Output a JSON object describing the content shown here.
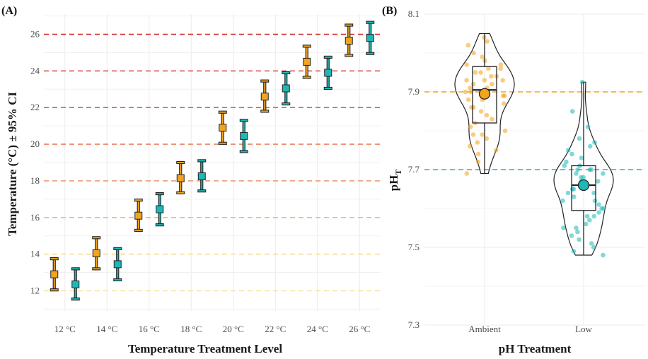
{
  "chart_data": [
    {
      "panel": "(A)",
      "type": "scatter",
      "xlabel": "Temperature Treatment Level",
      "ylabel": "Temperature (°C) ± 95% CI",
      "categories": [
        "12 °C",
        "14 °C",
        "16 °C",
        "18 °C",
        "20 °C",
        "22 °C",
        "24 °C",
        "26 °C"
      ],
      "target_values": [
        12,
        14,
        16,
        18,
        20,
        22,
        24,
        26
      ],
      "target_colors": [
        "#f6e7a1",
        "#f5d98e",
        "#f2b880",
        "#ee9a78",
        "#e98060",
        "#df5f4c",
        "#d84a3e",
        "#cf2f2f"
      ],
      "yticks": [
        12,
        14,
        16,
        18,
        20,
        22,
        24,
        26
      ],
      "ylim": [
        10.9,
        27.1
      ],
      "grid": true,
      "series": [
        {
          "color": "#f2a41c",
          "mean": [
            12.9,
            14.05,
            16.1,
            18.15,
            20.9,
            22.6,
            24.5,
            25.65
          ],
          "lower": [
            12.05,
            13.2,
            15.3,
            17.35,
            20.05,
            21.8,
            23.65,
            24.85
          ],
          "upper": [
            13.75,
            14.9,
            16.95,
            19.0,
            21.75,
            23.45,
            25.35,
            26.5
          ]
        },
        {
          "color": "#1fb7b7",
          "mean": [
            12.35,
            13.45,
            16.45,
            18.25,
            20.45,
            23.05,
            23.9,
            25.8
          ],
          "lower": [
            11.55,
            12.6,
            15.6,
            17.45,
            19.6,
            22.2,
            23.05,
            24.95
          ],
          "upper": [
            13.2,
            14.3,
            17.3,
            19.1,
            21.3,
            23.9,
            24.75,
            26.65
          ]
        }
      ]
    },
    {
      "panel": "(B)",
      "type": "violin",
      "xlabel": "pH Treatment",
      "ylabel_main": "pH",
      "ylabel_sub": "T",
      "categories": [
        "Ambient",
        "Low"
      ],
      "targets": [
        7.9,
        7.7
      ],
      "target_colors": [
        "#f2a41c",
        "#1fb7b7"
      ],
      "yticks": [
        "7.3",
        "7.5",
        "7.7",
        "7.9",
        "8.1"
      ],
      "ylim": [
        7.3,
        8.1
      ],
      "grid": true,
      "groups": [
        {
          "name": "Ambient",
          "color": "#f2a41c",
          "mean": 7.895,
          "box": {
            "q1": 7.82,
            "median": 7.905,
            "q3": 7.965
          },
          "whisker": [
            7.69,
            8.05
          ],
          "points": [
            8.04,
            8.03,
            8.02,
            8.0,
            7.99,
            7.98,
            7.97,
            7.96,
            7.96,
            7.95,
            7.95,
            7.94,
            7.94,
            7.93,
            7.93,
            7.92,
            7.92,
            7.91,
            7.91,
            7.9,
            7.9,
            7.9,
            7.89,
            7.89,
            7.88,
            7.88,
            7.87,
            7.86,
            7.85,
            7.84,
            7.83,
            7.82,
            7.81,
            7.8,
            7.79,
            7.79,
            7.78,
            7.77,
            7.76,
            7.75,
            7.74,
            7.72,
            7.69,
            7.93,
            7.86,
            7.97
          ]
        },
        {
          "name": "Low",
          "color": "#1fb7b7",
          "mean": 7.66,
          "box": {
            "q1": 7.595,
            "median": 7.66,
            "q3": 7.71
          },
          "whisker": [
            7.48,
            7.925
          ],
          "points": [
            7.925,
            7.85,
            7.81,
            7.78,
            7.77,
            7.76,
            7.75,
            7.74,
            7.73,
            7.72,
            7.71,
            7.71,
            7.7,
            7.7,
            7.69,
            7.69,
            7.68,
            7.68,
            7.67,
            7.67,
            7.66,
            7.66,
            7.65,
            7.65,
            7.64,
            7.64,
            7.63,
            7.62,
            7.61,
            7.6,
            7.6,
            7.59,
            7.58,
            7.57,
            7.56,
            7.55,
            7.55,
            7.54,
            7.53,
            7.52,
            7.51,
            7.5,
            7.49,
            7.48,
            7.62,
            7.7,
            7.58,
            7.66
          ]
        }
      ]
    }
  ]
}
